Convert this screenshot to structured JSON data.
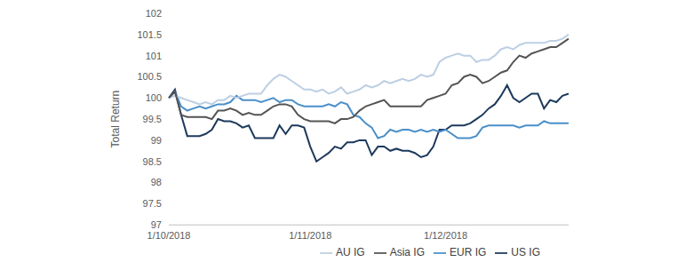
{
  "chart_data": {
    "type": "line",
    "y_label": "Total Return",
    "categories": [
      "1/10/2018",
      null,
      null,
      null,
      null,
      null,
      null,
      null,
      null,
      null,
      null,
      null,
      null,
      null,
      null,
      null,
      null,
      null,
      null,
      null,
      null,
      null,
      null,
      "1/11/2018",
      null,
      null,
      null,
      null,
      null,
      null,
      null,
      null,
      null,
      null,
      null,
      null,
      null,
      null,
      null,
      null,
      null,
      null,
      null,
      null,
      null,
      "1/12/2018",
      null,
      null,
      null,
      null,
      null,
      null,
      null,
      null,
      null,
      null,
      null,
      null,
      null,
      null,
      null,
      null,
      null,
      null,
      null,
      null
    ],
    "series": [
      {
        "name": "US IG",
        "color": "#1d3a5c",
        "values": [
          100,
          100.2,
          99.6,
          99.1,
          99.1,
          99.1,
          99.15,
          99.25,
          99.5,
          99.45,
          99.45,
          99.4,
          99.3,
          99.35,
          99.05,
          99.05,
          99.05,
          99.05,
          99.35,
          99.15,
          99.35,
          99.35,
          99.3,
          98.85,
          98.5,
          98.6,
          98.7,
          98.85,
          98.8,
          98.95,
          98.95,
          99.0,
          99.0,
          98.65,
          98.85,
          98.85,
          98.75,
          98.8,
          98.75,
          98.75,
          98.7,
          98.6,
          98.65,
          98.85,
          99.25,
          99.25,
          99.35,
          99.35,
          99.35,
          99.4,
          99.5,
          99.6,
          99.75,
          99.85,
          100.05,
          100.3,
          100.0,
          99.9,
          100.0,
          100.1,
          100.1,
          99.75,
          99.95,
          99.9,
          100.05,
          100.1
        ]
      },
      {
        "name": "EUR IG",
        "color": "#4a8fc9",
        "values": [
          100,
          100.15,
          99.8,
          99.7,
          99.75,
          99.8,
          99.75,
          99.8,
          99.85,
          99.85,
          99.9,
          100.05,
          99.95,
          99.95,
          99.95,
          99.9,
          99.95,
          100.0,
          99.9,
          99.95,
          99.95,
          99.85,
          99.8,
          99.8,
          99.8,
          99.8,
          99.85,
          99.8,
          99.9,
          99.85,
          99.6,
          99.55,
          99.4,
          99.3,
          99.05,
          99.1,
          99.25,
          99.2,
          99.25,
          99.25,
          99.2,
          99.25,
          99.2,
          99.25,
          99.2,
          99.25,
          99.15,
          99.05,
          99.05,
          99.05,
          99.1,
          99.3,
          99.35,
          99.35,
          99.35,
          99.35,
          99.35,
          99.3,
          99.35,
          99.35,
          99.35,
          99.45,
          99.4,
          99.4,
          99.4,
          99.4
        ]
      },
      {
        "name": "AU IG",
        "color": "#bccfe3",
        "values": [
          100,
          100.05,
          100.0,
          99.95,
          99.9,
          99.85,
          99.9,
          99.85,
          99.95,
          99.95,
          100.05,
          100.0,
          100.05,
          100.1,
          100.1,
          100.1,
          100.3,
          100.45,
          100.55,
          100.5,
          100.4,
          100.3,
          100.2,
          100.2,
          100.15,
          100.2,
          100.1,
          100.15,
          100.25,
          100.1,
          100.15,
          100.2,
          100.3,
          100.25,
          100.3,
          100.4,
          100.35,
          100.4,
          100.45,
          100.4,
          100.45,
          100.55,
          100.5,
          100.55,
          100.85,
          100.95,
          101.0,
          101.05,
          101.0,
          101.0,
          100.85,
          100.9,
          100.9,
          101.0,
          101.15,
          101.2,
          101.15,
          101.25,
          101.3,
          101.3,
          101.3,
          101.3,
          101.35,
          101.35,
          101.4,
          101.5
        ]
      },
      {
        "name": "Asia IG",
        "color": "#545454",
        "values": [
          100,
          100.15,
          99.6,
          99.55,
          99.55,
          99.55,
          99.55,
          99.5,
          99.7,
          99.7,
          99.75,
          99.7,
          99.6,
          99.65,
          99.6,
          99.6,
          99.7,
          99.8,
          99.85,
          99.85,
          99.8,
          99.6,
          99.5,
          99.45,
          99.45,
          99.45,
          99.45,
          99.4,
          99.5,
          99.5,
          99.55,
          99.7,
          99.8,
          99.85,
          99.9,
          99.95,
          99.8,
          99.8,
          99.8,
          99.8,
          99.8,
          99.8,
          99.95,
          100.0,
          100.05,
          100.1,
          100.3,
          100.35,
          100.5,
          100.55,
          100.5,
          100.35,
          100.4,
          100.5,
          100.6,
          100.65,
          100.85,
          101.0,
          100.95,
          101.05,
          101.1,
          101.15,
          101.2,
          101.2,
          101.3,
          101.4
        ]
      }
    ],
    "ylim": [
      97,
      102
    ],
    "yticks": [
      97,
      97.5,
      98,
      98.5,
      99,
      99.5,
      100,
      100.5,
      101,
      101.5,
      102
    ],
    "grid": false,
    "legend": "bottom"
  }
}
